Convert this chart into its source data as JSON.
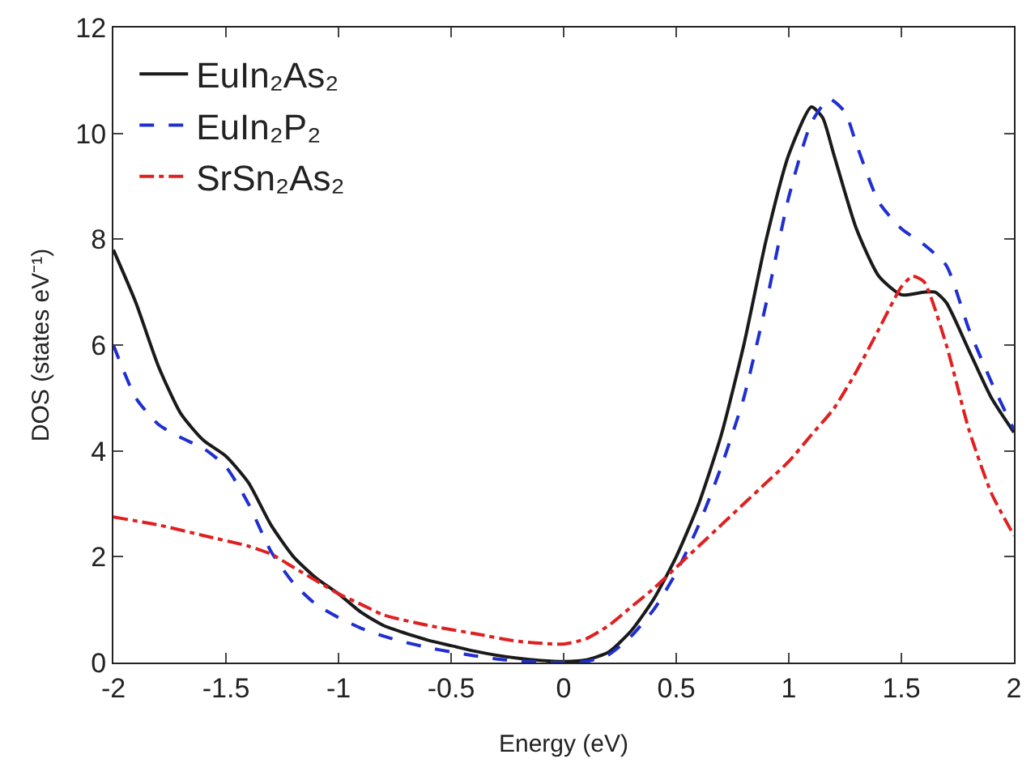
{
  "chart_data": {
    "type": "line",
    "xlabel": "Energy (eV)",
    "ylabel": "DOS (states eV⁻¹)",
    "xlim": [
      -2,
      2
    ],
    "ylim": [
      0,
      12
    ],
    "xticks": [
      -2,
      -1.5,
      -1,
      -0.5,
      0,
      0.5,
      1,
      1.5,
      2
    ],
    "yticks": [
      0,
      2,
      4,
      6,
      8,
      10,
      12
    ],
    "grid": false,
    "legend": "top left",
    "marker": "none",
    "series": [
      {
        "name": "EuIn₂As₂",
        "color": "#1a1a1a",
        "line_style": "solid",
        "x": [
          -2,
          -1.9,
          -1.8,
          -1.7,
          -1.6,
          -1.5,
          -1.4,
          -1.3,
          -1.2,
          -1.1,
          -1,
          -0.9,
          -0.8,
          -0.7,
          -0.6,
          -0.5,
          -0.4,
          -0.3,
          -0.2,
          -0.1,
          0,
          0.1,
          0.2,
          0.3,
          0.4,
          0.5,
          0.6,
          0.7,
          0.8,
          0.9,
          1,
          1.1,
          1.15,
          1.2,
          1.3,
          1.4,
          1.5,
          1.6,
          1.65,
          1.7,
          1.8,
          1.9,
          2
        ],
        "values": [
          7.8,
          6.8,
          5.6,
          4.7,
          4.2,
          3.9,
          3.4,
          2.6,
          2.0,
          1.6,
          1.3,
          0.95,
          0.7,
          0.55,
          0.42,
          0.32,
          0.22,
          0.14,
          0.08,
          0.04,
          0.02,
          0.05,
          0.2,
          0.6,
          1.2,
          2.0,
          3.0,
          4.3,
          6.0,
          8.0,
          9.6,
          10.5,
          10.3,
          9.6,
          8.2,
          7.3,
          6.95,
          7.0,
          7.0,
          6.8,
          5.9,
          5.0,
          4.35
        ]
      },
      {
        "name": "EuIn₂P₂",
        "color": "#1f2fd0",
        "line_style": "dashed",
        "x": [
          -2,
          -1.9,
          -1.8,
          -1.7,
          -1.6,
          -1.5,
          -1.4,
          -1.3,
          -1.2,
          -1.1,
          -1,
          -0.9,
          -0.8,
          -0.7,
          -0.6,
          -0.5,
          -0.4,
          -0.3,
          -0.2,
          -0.1,
          0,
          0.1,
          0.2,
          0.3,
          0.4,
          0.5,
          0.6,
          0.7,
          0.8,
          0.9,
          1,
          1.1,
          1.18,
          1.25,
          1.3,
          1.4,
          1.5,
          1.6,
          1.7,
          1.8,
          1.9,
          2
        ],
        "values": [
          6.0,
          5.0,
          4.5,
          4.25,
          4.05,
          3.7,
          3.0,
          2.1,
          1.5,
          1.1,
          0.85,
          0.65,
          0.5,
          0.38,
          0.28,
          0.2,
          0.13,
          0.07,
          0.03,
          0.01,
          0.0,
          0.02,
          0.15,
          0.5,
          1.0,
          1.7,
          2.6,
          3.7,
          5.0,
          6.8,
          8.8,
          10.2,
          10.65,
          10.4,
          9.8,
          8.7,
          8.2,
          7.9,
          7.5,
          6.3,
          5.3,
          4.4
        ]
      },
      {
        "name": "SrSn₂As₂",
        "color": "#e02020",
        "line_style": "dashdot",
        "x": [
          -2,
          -1.8,
          -1.6,
          -1.4,
          -1.3,
          -1.2,
          -1.1,
          -1,
          -0.9,
          -0.8,
          -0.6,
          -0.4,
          -0.2,
          0,
          0.1,
          0.2,
          0.3,
          0.4,
          0.5,
          0.6,
          0.7,
          0.8,
          0.9,
          1,
          1.1,
          1.2,
          1.3,
          1.4,
          1.5,
          1.55,
          1.6,
          1.7,
          1.8,
          1.9,
          2
        ],
        "values": [
          2.75,
          2.6,
          2.4,
          2.2,
          2.05,
          1.8,
          1.55,
          1.3,
          1.1,
          0.9,
          0.7,
          0.55,
          0.4,
          0.35,
          0.45,
          0.7,
          1.05,
          1.4,
          1.8,
          2.2,
          2.6,
          3.0,
          3.4,
          3.8,
          4.3,
          4.8,
          5.5,
          6.3,
          7.1,
          7.3,
          7.2,
          6.0,
          4.4,
          3.2,
          2.4
        ]
      }
    ]
  }
}
